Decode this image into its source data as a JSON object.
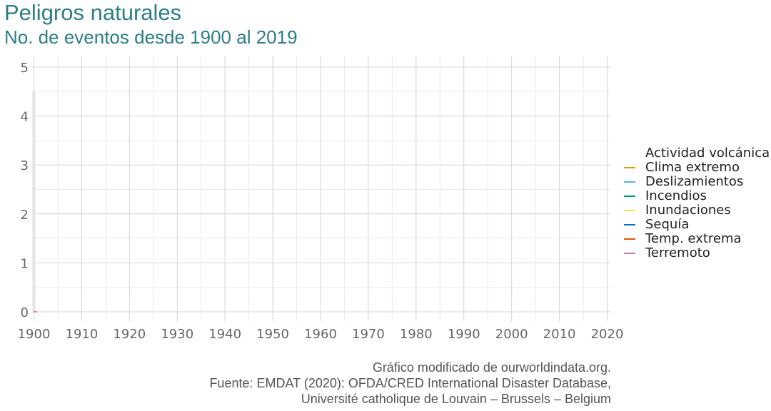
{
  "title": "Peligros naturales",
  "subtitle": "No. de eventos desde 1900 al 2019",
  "caption": {
    "line1": "Gráfico modificado de ourworldindata.org.",
    "line2": "Fuente: EMDAT (2020): OFDA/CRED International Disaster Database,",
    "line3": "Université catholique de Louvain – Brussels – Belgium"
  },
  "colors": {
    "title": "#2b7f86",
    "grid_major": "#d4d4d4",
    "grid_minor": "#ebebeb"
  },
  "chart_data": {
    "type": "line",
    "title": "Peligros naturales",
    "subtitle": "No. de eventos desde 1900 al 2019",
    "xlim": [
      1900,
      2020
    ],
    "ylim": [
      0,
      5
    ],
    "x_ticks": [
      "1900",
      "1910",
      "1920",
      "1930",
      "1940",
      "1950",
      "1960",
      "1970",
      "1980",
      "1990",
      "2000",
      "2010",
      "2020"
    ],
    "y_ticks": [
      "0",
      "1",
      "2",
      "3",
      "4",
      "5"
    ],
    "grid": true,
    "legend_position": "right",
    "series": [
      {
        "name": "Actividad volcánica",
        "color": "#ffffff",
        "x": [
          1900
        ],
        "y": [
          0
        ]
      },
      {
        "name": "Clima extremo",
        "color": "#e69f00",
        "x": [
          1900
        ],
        "y": [
          0
        ]
      },
      {
        "name": "Deslizamientos",
        "color": "#56b4e9",
        "x": [
          1900
        ],
        "y": [
          0
        ]
      },
      {
        "name": "Incendios",
        "color": "#009e73",
        "x": [
          1900
        ],
        "y": [
          0
        ]
      },
      {
        "name": "Inundaciones",
        "color": "#f0e442",
        "x": [
          1900
        ],
        "y": [
          0
        ]
      },
      {
        "name": "Sequía",
        "color": "#0072b2",
        "x": [
          1900
        ],
        "y": [
          0
        ]
      },
      {
        "name": "Temp. extrema",
        "color": "#d55e00",
        "x": [
          1900
        ],
        "y": [
          0
        ]
      },
      {
        "name": "Terremoto",
        "color": "#cc79a7",
        "x": [
          1900
        ],
        "y": [
          0
        ]
      }
    ]
  }
}
